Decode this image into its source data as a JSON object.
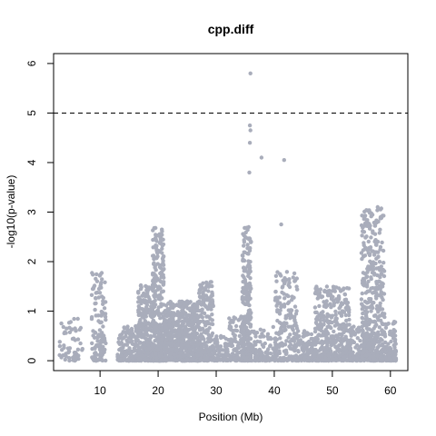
{
  "chart_data": {
    "type": "scatter",
    "title": "cpp.diff",
    "xlabel": "Position (Mb)",
    "ylabel": "-log10(p-value)",
    "xlim": [
      2,
      63
    ],
    "ylim": [
      -0.2,
      6.2
    ],
    "xticks": [
      10,
      20,
      30,
      40,
      50,
      60
    ],
    "yticks": [
      0,
      1,
      2,
      3,
      4,
      5,
      6
    ],
    "threshold": 5,
    "threshold_style": "dashed",
    "grid": false,
    "colors": {
      "points": "#a9adbb",
      "axis": "#000000",
      "threshold": "#000000"
    },
    "point_clusters": [
      {
        "x_range": [
          3,
          7
        ],
        "y_max": 0.85,
        "density": 60
      },
      {
        "x_range": [
          8.5,
          11
        ],
        "y_max": 1.8,
        "density": 120
      },
      {
        "x_range": [
          13,
          16.5
        ],
        "y_max": 0.7,
        "density": 140
      },
      {
        "x_range": [
          16.5,
          19
        ],
        "y_max": 1.6,
        "density": 260
      },
      {
        "x_range": [
          19,
          21
        ],
        "y_max": 2.7,
        "density": 320
      },
      {
        "x_range": [
          21,
          27
        ],
        "y_max": 1.2,
        "density": 600
      },
      {
        "x_range": [
          27,
          29.5
        ],
        "y_max": 1.6,
        "density": 220
      },
      {
        "x_range": [
          29.5,
          32
        ],
        "y_max": 0.5,
        "density": 60
      },
      {
        "x_range": [
          32,
          34.5
        ],
        "y_max": 0.9,
        "density": 80
      },
      {
        "x_range": [
          34.5,
          36
        ],
        "y_max": 2.7,
        "density": 260
      },
      {
        "x_range": [
          36,
          40
        ],
        "y_max": 0.7,
        "density": 90
      },
      {
        "x_range": [
          40,
          44
        ],
        "y_max": 1.8,
        "density": 200
      },
      {
        "x_range": [
          44,
          47
        ],
        "y_max": 0.6,
        "density": 100
      },
      {
        "x_range": [
          47,
          53
        ],
        "y_max": 1.5,
        "density": 420
      },
      {
        "x_range": [
          53,
          55
        ],
        "y_max": 0.7,
        "density": 80
      },
      {
        "x_range": [
          55,
          59
        ],
        "y_max": 3.1,
        "density": 460
      },
      {
        "x_range": [
          59,
          61
        ],
        "y_max": 0.8,
        "density": 90
      }
    ],
    "outliers": [
      {
        "x": 35.9,
        "y": 5.8
      },
      {
        "x": 35.8,
        "y": 4.75
      },
      {
        "x": 35.9,
        "y": 4.65
      },
      {
        "x": 35.8,
        "y": 4.4
      },
      {
        "x": 37.8,
        "y": 4.1
      },
      {
        "x": 41.7,
        "y": 4.05
      },
      {
        "x": 35.7,
        "y": 3.8
      },
      {
        "x": 41.2,
        "y": 2.75
      },
      {
        "x": 57.8,
        "y": 3.1
      }
    ]
  }
}
